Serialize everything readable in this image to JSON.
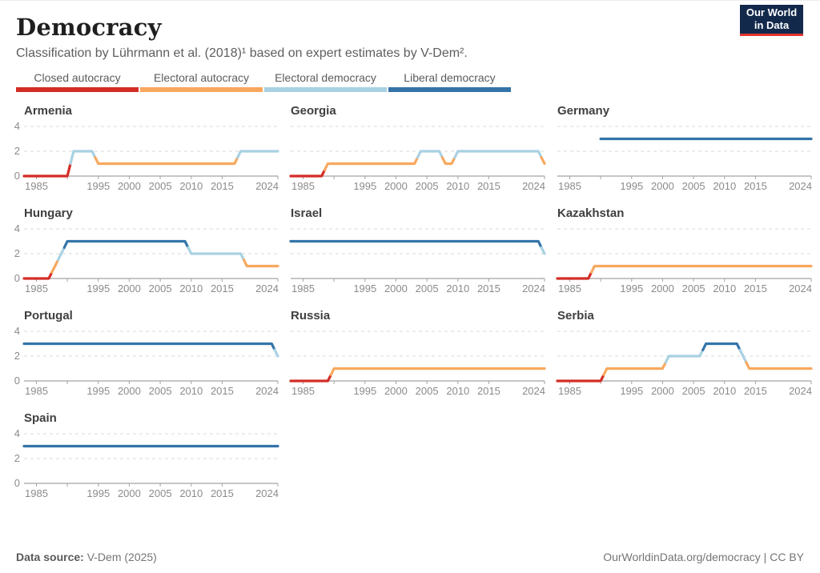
{
  "header": {
    "title": "Democracy",
    "subtitle": "Classification by Lührmann et al. (2018)¹ based on expert estimates by V-Dem².",
    "logo": {
      "line1": "Our World",
      "line2": "in Data",
      "bg": "#12294b",
      "accent": "#e0362c"
    }
  },
  "legend": {
    "items": [
      {
        "label": "Closed autocracy",
        "color": "#d32d26"
      },
      {
        "label": "Electoral autocracy",
        "color": "#f8a85e"
      },
      {
        "label": "Electoral democracy",
        "color": "#a9d1e3"
      },
      {
        "label": "Liberal democracy",
        "color": "#3474a9"
      }
    ]
  },
  "chart_data": {
    "type": "line",
    "title": "Democracy",
    "x_domain": [
      1983,
      2024
    ],
    "y_max": 4,
    "y_ticks": [
      0,
      2,
      4
    ],
    "x_ticks": [
      {
        "year": 1985,
        "label": "1985"
      },
      {
        "year": 1990,
        "label": ""
      },
      {
        "year": 1995,
        "label": "1995"
      },
      {
        "year": 2000,
        "label": "2000"
      },
      {
        "year": 2005,
        "label": "2005"
      },
      {
        "year": 2010,
        "label": "2010"
      },
      {
        "year": 2015,
        "label": "2015"
      },
      {
        "year": 2024,
        "label": "2024"
      }
    ],
    "value_labels": {
      "0": "Closed autocracy",
      "1": "Electoral autocracy",
      "2": "Electoral democracy",
      "3": "Liberal democracy"
    },
    "value_colors": {
      "0": "#d32d26",
      "1": "#f8a85e",
      "2": "#a9d1e3",
      "3": "#3474a9"
    },
    "countries": [
      {
        "name": "Armenia",
        "segments": [
          [
            1983,
            1990,
            0
          ],
          [
            1991,
            1994,
            2
          ],
          [
            1995,
            2017,
            1
          ],
          [
            2018,
            2024,
            2
          ]
        ]
      },
      {
        "name": "Georgia",
        "segments": [
          [
            1983,
            1988,
            0
          ],
          [
            1989,
            2003,
            1
          ],
          [
            2004,
            2007,
            2
          ],
          [
            2008,
            2009,
            1
          ],
          [
            2010,
            2023,
            2
          ],
          [
            2024,
            2024,
            1
          ]
        ]
      },
      {
        "name": "Germany",
        "segments": [
          [
            1990,
            2024,
            3
          ]
        ]
      },
      {
        "name": "Hungary",
        "segments": [
          [
            1983,
            1987,
            0
          ],
          [
            1988,
            1988,
            1
          ],
          [
            1989,
            1989,
            2
          ],
          [
            1990,
            2009,
            3
          ],
          [
            2010,
            2018,
            2
          ],
          [
            2019,
            2024,
            1
          ]
        ]
      },
      {
        "name": "Israel",
        "segments": [
          [
            1983,
            2023,
            3
          ],
          [
            2024,
            2024,
            2
          ]
        ]
      },
      {
        "name": "Kazakhstan",
        "segments": [
          [
            1983,
            1988,
            0
          ],
          [
            1989,
            2024,
            1
          ]
        ]
      },
      {
        "name": "Portugal",
        "segments": [
          [
            1983,
            2023,
            3
          ],
          [
            2024,
            2024,
            2
          ]
        ]
      },
      {
        "name": "Russia",
        "segments": [
          [
            1983,
            1989,
            0
          ],
          [
            1990,
            2024,
            1
          ]
        ]
      },
      {
        "name": "Serbia",
        "segments": [
          [
            1983,
            1990,
            0
          ],
          [
            1991,
            2000,
            1
          ],
          [
            2001,
            2006,
            2
          ],
          [
            2007,
            2012,
            3
          ],
          [
            2013,
            2013,
            2
          ],
          [
            2014,
            2024,
            1
          ]
        ]
      },
      {
        "name": "Spain",
        "segments": [
          [
            1983,
            2024,
            3
          ]
        ]
      }
    ],
    "axis_color": "#a3a3a3",
    "grid_color": "#dadada",
    "tick_text_color": "#8b8b8b"
  },
  "footer": {
    "source_label": "Data source:",
    "source_value": " V-Dem (2025)",
    "credit_link": "OurWorldinData.org/democracy",
    "credit_suffix": " | CC BY"
  }
}
